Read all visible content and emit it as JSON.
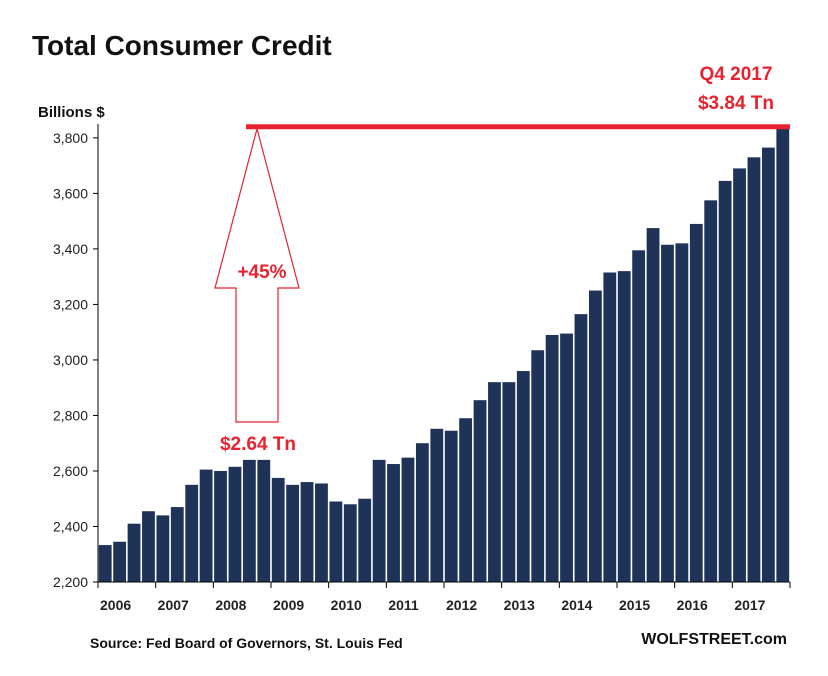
{
  "chart_data": {
    "type": "bar",
    "title": "Total Consumer Credit",
    "ylabel": "Billions $",
    "xlabel": "",
    "ylim": [
      2200,
      3850
    ],
    "yticks": [
      2200,
      2400,
      2600,
      2800,
      3000,
      3200,
      3400,
      3600,
      3800
    ],
    "ytick_labels": [
      "2,200",
      "2,400",
      "2,600",
      "2,800",
      "3,000",
      "3,200",
      "3,400",
      "3,600",
      "3,800"
    ],
    "year_labels": [
      "2006",
      "2007",
      "2008",
      "2009",
      "2010",
      "2011",
      "2012",
      "2013",
      "2014",
      "2015",
      "2016",
      "2017"
    ],
    "bar_color": "#1f3358",
    "annotation_color": "#e8232f",
    "grid": false,
    "legend": false,
    "categories": [
      "2006 Q1",
      "2006 Q2",
      "2006 Q3",
      "2006 Q4",
      "2007 Q1",
      "2007 Q2",
      "2007 Q3",
      "2007 Q4",
      "2008 Q1",
      "2008 Q2",
      "2008 Q3",
      "2008 Q4",
      "2009 Q1",
      "2009 Q2",
      "2009 Q3",
      "2009 Q4",
      "2010 Q1",
      "2010 Q2",
      "2010 Q3",
      "2010 Q4",
      "2011 Q1",
      "2011 Q2",
      "2011 Q3",
      "2011 Q4",
      "2012 Q1",
      "2012 Q2",
      "2012 Q3",
      "2012 Q4",
      "2013 Q1",
      "2013 Q2",
      "2013 Q3",
      "2013 Q4",
      "2014 Q1",
      "2014 Q2",
      "2014 Q3",
      "2014 Q4",
      "2015 Q1",
      "2015 Q2",
      "2015 Q3",
      "2015 Q4",
      "2016 Q1",
      "2016 Q2",
      "2016 Q3",
      "2016 Q4",
      "2017 Q1",
      "2017 Q2",
      "2017 Q3",
      "2017 Q4"
    ],
    "values": [
      2333,
      2345,
      2410,
      2455,
      2440,
      2470,
      2550,
      2605,
      2600,
      2615,
      2640,
      2640,
      2575,
      2550,
      2560,
      2555,
      2490,
      2480,
      2500,
      2640,
      2625,
      2648,
      2700,
      2752,
      2745,
      2790,
      2855,
      2920,
      2920,
      2960,
      3035,
      3090,
      3095,
      3165,
      3250,
      3315,
      3320,
      3395,
      3475,
      3415,
      3420,
      3490,
      3575,
      3645,
      3690,
      3730,
      3765,
      3840
    ],
    "reference_line": {
      "value": 3840
    },
    "annotations": {
      "low": "$2.64 Tn",
      "change": "+45%",
      "latest_period": "Q4 2017",
      "latest_value": "$3.84 Tn"
    }
  },
  "footer": {
    "source": "Source: Fed Board of Governors, St. Louis Fed",
    "brand": "WOLFSTREET.com"
  }
}
